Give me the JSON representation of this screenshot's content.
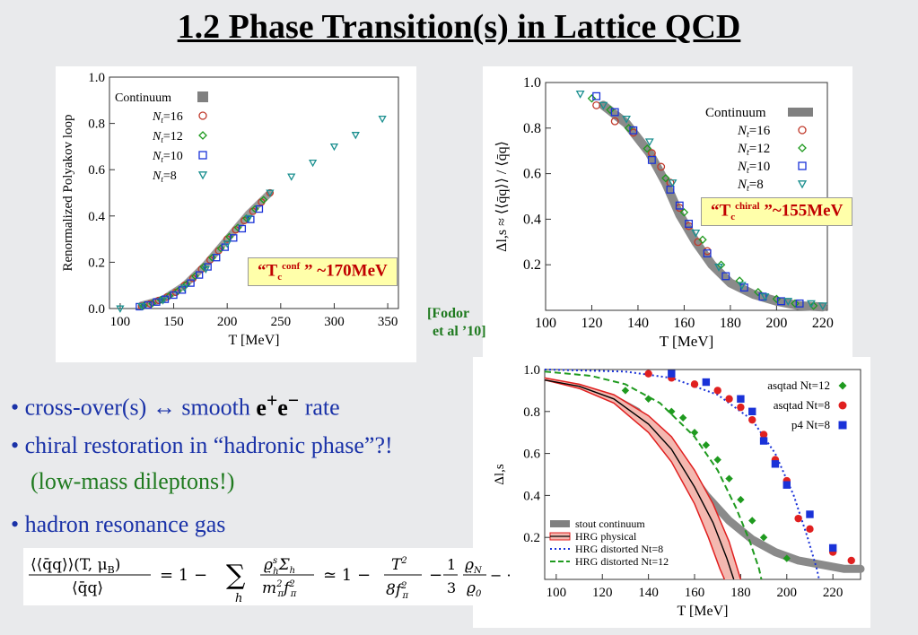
{
  "title": "1.2 Phase Transition(s) in Lattice QCD",
  "colors": {
    "red": "#c0392b",
    "green": "#1f9a1f",
    "blue": "#1a32d8",
    "teal": "#1a8f8f",
    "gray": "#808080",
    "bullet_blue": "#1a32a8"
  },
  "callout_conf": {
    "prefix": "“T",
    "sub": "c",
    "sup": "conf",
    "suffix": " ” ~170MeV"
  },
  "callout_chiral": {
    "prefix": "“T",
    "sub": "c",
    "sup": "chiral",
    "suffix": " ”~155MeV"
  },
  "citation": {
    "line1": "[Fodor",
    "line2": "et al ’10]"
  },
  "bullets": {
    "b1_a": "• cross-over(s)   ↔  smooth ",
    "b1_e1": "e",
    "b1_sup1": "+",
    "b1_e2": "e",
    "b1_sup2": "−",
    "b1_b": " rate",
    "b2": "• chiral restoration in “hadronic phase”?!",
    "b2_sub": "(low-mass dileptons!)",
    "b3": "• hadron resonance gas"
  },
  "formula": {
    "lhs_num": "⟨⟨q̄q⟩⟩(T, μ",
    "lhs_num_sub": "B",
    "lhs_den": "⟨q̄q⟩",
    "eq": "=  1 −",
    "sum_sym": "∑",
    "sum_index": "h",
    "term1_num": "ϱ",
    "term1_den": "m",
    "approx": "≃  1 −",
    "t2": "T",
    "t2_den": "8f",
    "third": "1",
    "third_den": "3",
    "rho_n": "ϱ",
    "rho_0": "ϱ",
    "tail": "− ···"
  },
  "chart_data": [
    {
      "type": "scatter",
      "xlabel": "T [MeV]",
      "ylabel": "Renormalized Polyakov loop",
      "xlim": [
        90,
        360
      ],
      "ylim": [
        0.0,
        1.0
      ],
      "xticks": [
        100,
        150,
        200,
        250,
        300,
        350
      ],
      "yticks": [
        0.0,
        0.2,
        0.4,
        0.6,
        0.8,
        1.0
      ],
      "legend_placement": "top-left",
      "continuum_label": "Continuum",
      "continuum": [
        [
          120,
          0.015
        ],
        [
          140,
          0.04
        ],
        [
          160,
          0.1
        ],
        [
          180,
          0.19
        ],
        [
          200,
          0.3
        ],
        [
          220,
          0.41
        ],
        [
          240,
          0.5
        ]
      ],
      "series": [
        {
          "name": "Nt=16",
          "nt": "16",
          "marker": "circle",
          "color": "#c0392b",
          "x": [
            120,
            128,
            136,
            144,
            152,
            160,
            168,
            176,
            184,
            192,
            200,
            208,
            216,
            224,
            232,
            240
          ],
          "y": [
            0.01,
            0.02,
            0.035,
            0.05,
            0.07,
            0.1,
            0.13,
            0.17,
            0.21,
            0.25,
            0.3,
            0.34,
            0.38,
            0.42,
            0.46,
            0.5
          ]
        },
        {
          "name": "Nt=12",
          "nt": "12",
          "marker": "diamond",
          "color": "#1f9a1f",
          "x": [
            122,
            130,
            138,
            146,
            154,
            162,
            170,
            178,
            186,
            194,
            202,
            210,
            218,
            226,
            234
          ],
          "y": [
            0.012,
            0.022,
            0.038,
            0.055,
            0.076,
            0.105,
            0.14,
            0.18,
            0.22,
            0.26,
            0.31,
            0.35,
            0.39,
            0.43,
            0.47
          ]
        },
        {
          "name": "Nt=10",
          "nt": "10",
          "marker": "square",
          "color": "#1a32d8",
          "x": [
            118,
            126,
            134,
            142,
            150,
            158,
            166,
            174,
            182,
            190,
            198,
            206,
            214,
            222,
            230
          ],
          "y": [
            0.008,
            0.015,
            0.028,
            0.04,
            0.058,
            0.08,
            0.11,
            0.145,
            0.18,
            0.22,
            0.265,
            0.305,
            0.345,
            0.385,
            0.43
          ]
        },
        {
          "name": "Nt=8",
          "nt": "8",
          "marker": "triangle-down",
          "color": "#1a8f8f",
          "x": [
            100,
            120,
            140,
            160,
            180,
            200,
            220,
            240,
            260,
            280,
            300,
            320,
            345
          ],
          "y": [
            0.0,
            0.01,
            0.035,
            0.09,
            0.17,
            0.28,
            0.39,
            0.5,
            0.57,
            0.63,
            0.7,
            0.75,
            0.82
          ]
        }
      ]
    },
    {
      "type": "scatter",
      "xlabel": "T [MeV]",
      "ylabel": "Δl,s ≈ ⟨⟨q̄q⟩⟩ / ⟨q̄q⟩",
      "xlim": [
        100,
        222
      ],
      "ylim": [
        0.0,
        1.0
      ],
      "xticks": [
        100,
        120,
        140,
        160,
        180,
        200,
        220
      ],
      "yticks": [
        0.2,
        0.4,
        0.6,
        0.8,
        1.0
      ],
      "legend_placement": "top-right",
      "continuum_label": "Continuum",
      "continuum": [
        [
          125,
          0.9
        ],
        [
          135,
          0.82
        ],
        [
          145,
          0.69
        ],
        [
          152,
          0.56
        ],
        [
          158,
          0.42
        ],
        [
          165,
          0.3
        ],
        [
          172,
          0.2
        ],
        [
          180,
          0.12
        ],
        [
          190,
          0.07
        ],
        [
          200,
          0.04
        ],
        [
          210,
          0.02
        ],
        [
          220,
          0.015
        ]
      ],
      "series": [
        {
          "name": "Nt=16",
          "nt": "16",
          "marker": "circle",
          "color": "#c0392b",
          "x": [
            122,
            130,
            138,
            146,
            150,
            154,
            158,
            162,
            166,
            170
          ],
          "y": [
            0.9,
            0.83,
            0.78,
            0.69,
            0.63,
            0.56,
            0.45,
            0.37,
            0.3,
            0.26
          ]
        },
        {
          "name": "Nt=12",
          "nt": "12",
          "marker": "diamond",
          "color": "#1f9a1f",
          "x": [
            120,
            128,
            136,
            144,
            152,
            160,
            168,
            176,
            184,
            192,
            200,
            208,
            216
          ],
          "y": [
            0.93,
            0.88,
            0.8,
            0.71,
            0.58,
            0.43,
            0.31,
            0.2,
            0.13,
            0.08,
            0.05,
            0.03,
            0.02
          ]
        },
        {
          "name": "Nt=10",
          "nt": "10",
          "marker": "square",
          "color": "#1a32d8",
          "x": [
            122,
            130,
            138,
            146,
            154,
            158,
            162,
            170,
            178,
            186,
            194,
            202,
            210
          ],
          "y": [
            0.94,
            0.87,
            0.79,
            0.66,
            0.53,
            0.46,
            0.38,
            0.25,
            0.15,
            0.1,
            0.06,
            0.04,
            0.03
          ]
        },
        {
          "name": "Nt=8",
          "nt": "8",
          "marker": "triangle-down",
          "color": "#1a8f8f",
          "x": [
            115,
            125,
            135,
            145,
            155,
            165,
            175,
            185,
            195,
            205,
            215,
            220
          ],
          "y": [
            0.95,
            0.9,
            0.84,
            0.74,
            0.56,
            0.34,
            0.19,
            0.11,
            0.06,
            0.04,
            0.03,
            0.02
          ]
        }
      ]
    },
    {
      "type": "line",
      "xlabel": "T [MeV]",
      "ylabel": "Δl,s",
      "xlim": [
        95,
        232
      ],
      "ylim": [
        0.0,
        1.0
      ],
      "xticks": [
        100,
        120,
        140,
        160,
        180,
        200,
        220
      ],
      "yticks": [
        0.2,
        0.4,
        0.6,
        0.8,
        1.0
      ],
      "legend_placement": "bottom-left",
      "top_legend": [
        {
          "name": "asqtad Nt=12",
          "marker": "diamond",
          "color": "#1f9a1f"
        },
        {
          "name": "asqtad Nt=8",
          "marker": "circle",
          "color": "#e02020"
        },
        {
          "name": "p4 Nt=8",
          "marker": "square",
          "color": "#1a32d8"
        }
      ],
      "bottom_legend": [
        {
          "name": "stout continuum",
          "style": "band-gray"
        },
        {
          "name": "HRG physical",
          "style": "band-red"
        },
        {
          "name": "HRG distorted Nt=8",
          "style": "dotted-blue"
        },
        {
          "name": "HRG distorted Nt=12",
          "style": "dashed-green"
        }
      ],
      "stout_continuum": [
        [
          125,
          0.86
        ],
        [
          135,
          0.8
        ],
        [
          145,
          0.68
        ],
        [
          155,
          0.55
        ],
        [
          165,
          0.4
        ],
        [
          175,
          0.28
        ],
        [
          185,
          0.19
        ],
        [
          195,
          0.13
        ],
        [
          205,
          0.09
        ],
        [
          215,
          0.07
        ],
        [
          225,
          0.05
        ],
        [
          232,
          0.05
        ]
      ],
      "hrg_physical_upper": [
        [
          95,
          0.96
        ],
        [
          110,
          0.93
        ],
        [
          125,
          0.88
        ],
        [
          140,
          0.78
        ],
        [
          150,
          0.68
        ],
        [
          160,
          0.52
        ],
        [
          168,
          0.36
        ],
        [
          175,
          0.18
        ],
        [
          180,
          0.0
        ]
      ],
      "hrg_physical_mid": [
        [
          95,
          0.95
        ],
        [
          110,
          0.92
        ],
        [
          125,
          0.86
        ],
        [
          140,
          0.74
        ],
        [
          150,
          0.62
        ],
        [
          160,
          0.44
        ],
        [
          168,
          0.27
        ],
        [
          174,
          0.1
        ],
        [
          177,
          0.0
        ]
      ],
      "hrg_physical_lower": [
        [
          95,
          0.95
        ],
        [
          110,
          0.91
        ],
        [
          125,
          0.84
        ],
        [
          140,
          0.7
        ],
        [
          150,
          0.56
        ],
        [
          160,
          0.36
        ],
        [
          166,
          0.2
        ],
        [
          171,
          0.05
        ],
        [
          173,
          0.0
        ]
      ],
      "hrg_distorted_nt8": [
        [
          95,
          1.0
        ],
        [
          130,
          0.99
        ],
        [
          150,
          0.96
        ],
        [
          170,
          0.88
        ],
        [
          185,
          0.76
        ],
        [
          195,
          0.6
        ],
        [
          203,
          0.4
        ],
        [
          209,
          0.2
        ],
        [
          213,
          0.05
        ],
        [
          214,
          0.0
        ]
      ],
      "hrg_distorted_nt12": [
        [
          95,
          0.99
        ],
        [
          115,
          0.97
        ],
        [
          130,
          0.93
        ],
        [
          145,
          0.84
        ],
        [
          160,
          0.68
        ],
        [
          170,
          0.52
        ],
        [
          178,
          0.34
        ],
        [
          184,
          0.18
        ],
        [
          188,
          0.05
        ],
        [
          189,
          0.0
        ]
      ],
      "series": [
        {
          "name": "asqtad Nt=12",
          "marker": "diamond",
          "color": "#1f9a1f",
          "x": [
            130,
            140,
            150,
            155,
            160,
            165,
            170,
            175,
            180,
            185,
            190,
            200
          ],
          "y": [
            0.9,
            0.86,
            0.8,
            0.77,
            0.7,
            0.64,
            0.57,
            0.48,
            0.38,
            0.28,
            0.2,
            0.1
          ]
        },
        {
          "name": "asqtad Nt=8",
          "marker": "circle",
          "color": "#e02020",
          "x": [
            140,
            150,
            160,
            170,
            175,
            180,
            185,
            190,
            195,
            200,
            205,
            210,
            220,
            228
          ],
          "y": [
            0.98,
            0.96,
            0.93,
            0.9,
            0.86,
            0.82,
            0.76,
            0.69,
            0.57,
            0.47,
            0.29,
            0.24,
            0.13,
            0.09
          ]
        },
        {
          "name": "p4 Nt=8",
          "marker": "square",
          "color": "#1a32d8",
          "x": [
            150,
            165,
            180,
            185,
            190,
            195,
            200,
            210,
            220
          ],
          "y": [
            0.98,
            0.94,
            0.86,
            0.8,
            0.66,
            0.55,
            0.45,
            0.31,
            0.15
          ]
        }
      ]
    }
  ]
}
